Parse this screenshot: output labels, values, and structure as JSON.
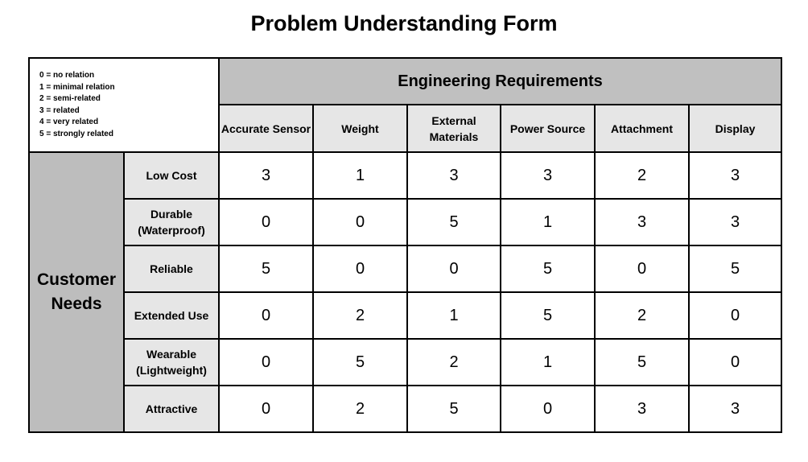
{
  "title": "Problem Understanding Form",
  "legend": [
    "0 = no relation",
    "1 = minimal relation",
    "2 = semi-related",
    "3 = related",
    "4 = very related",
    "5 = strongly related"
  ],
  "engineering_header": "Engineering Requirements",
  "customer_header": "Customer Needs",
  "columns": [
    "Accurate Sensor",
    "Weight",
    "External Materials",
    "Power Source",
    "Attachment",
    "Display"
  ],
  "rows": [
    {
      "label": "Low Cost",
      "values": [
        3,
        1,
        3,
        3,
        2,
        3
      ]
    },
    {
      "label": "Durable (Waterproof)",
      "values": [
        0,
        0,
        5,
        1,
        3,
        3
      ]
    },
    {
      "label": "Reliable",
      "values": [
        5,
        0,
        0,
        5,
        0,
        5
      ]
    },
    {
      "label": "Extended Use",
      "values": [
        0,
        2,
        1,
        5,
        2,
        0
      ]
    },
    {
      "label": "Wearable (Lightweight)",
      "values": [
        0,
        5,
        2,
        1,
        5,
        0
      ]
    },
    {
      "label": "Attractive",
      "values": [
        0,
        2,
        5,
        0,
        3,
        3
      ]
    }
  ]
}
